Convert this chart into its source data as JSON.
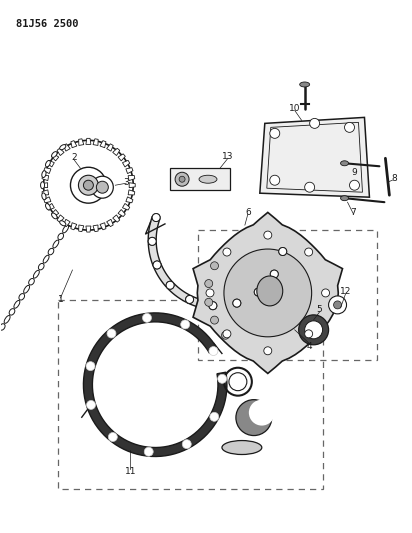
{
  "title": "81J56 2500",
  "bg_color": "#ffffff",
  "line_color": "#1a1a1a",
  "fig_width": 4.12,
  "fig_height": 5.33,
  "dpi": 100
}
